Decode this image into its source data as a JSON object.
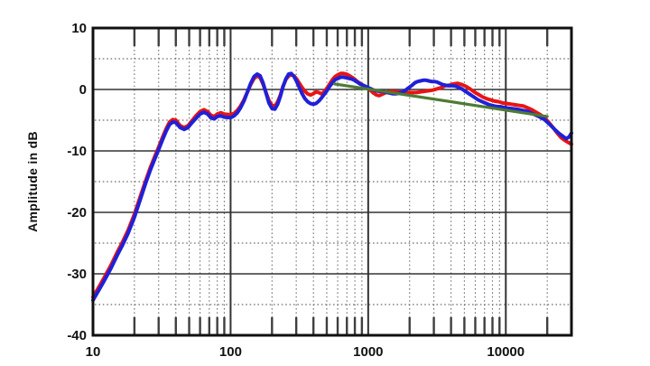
{
  "chart_data": {
    "type": "line",
    "title": "",
    "xlabel": "",
    "ylabel": "Amplitude in dB",
    "x_scale": "log",
    "xlim": [
      10,
      30000
    ],
    "ylim": [
      -40,
      10
    ],
    "grid": {
      "major": "solid",
      "minor": "dotted"
    },
    "legend": "none",
    "x_ticks": {
      "major_values": [
        10,
        100,
        1000,
        10000
      ],
      "major_labels": [
        "10",
        "100",
        "1000",
        "10000"
      ],
      "minor_decades": [
        10,
        100,
        1000,
        10000
      ]
    },
    "y_ticks": {
      "major_values": [
        10,
        0,
        -10,
        -20,
        -30,
        -40
      ],
      "major_labels": [
        "10",
        "0",
        "-10",
        "-20",
        "-30",
        "-40"
      ],
      "minor_dotted_values": [
        5,
        -5,
        -15,
        -25,
        -35
      ]
    },
    "series": [
      {
        "name": "frequency-response-red",
        "color": "#e81414",
        "points": [
          [
            10,
            -33.8
          ],
          [
            11,
            -32.2
          ],
          [
            12,
            -30.7
          ],
          [
            13.5,
            -28.6
          ],
          [
            15,
            -26.5
          ],
          [
            16.5,
            -24.7
          ],
          [
            18,
            -22.9
          ],
          [
            20,
            -20.3
          ],
          [
            22,
            -17.5
          ],
          [
            24,
            -15
          ],
          [
            26,
            -12.8
          ],
          [
            28,
            -11
          ],
          [
            30,
            -9.4
          ],
          [
            32,
            -7.8
          ],
          [
            34,
            -6.4
          ],
          [
            36,
            -5.3
          ],
          [
            38,
            -4.9
          ],
          [
            40,
            -5
          ],
          [
            43,
            -5.9
          ],
          [
            46,
            -6.2
          ],
          [
            49,
            -5.9
          ],
          [
            52,
            -5.2
          ],
          [
            56,
            -4.3
          ],
          [
            60,
            -3.6
          ],
          [
            64,
            -3.3
          ],
          [
            68,
            -3.6
          ],
          [
            72,
            -4.2
          ],
          [
            76,
            -4.4
          ],
          [
            80,
            -4
          ],
          [
            85,
            -3.8
          ],
          [
            90,
            -4
          ],
          [
            100,
            -4.1
          ],
          [
            106,
            -3.9
          ],
          [
            112,
            -3.4
          ],
          [
            118,
            -2.7
          ],
          [
            125,
            -1.7
          ],
          [
            132,
            -0.5
          ],
          [
            140,
            0.8
          ],
          [
            148,
            1.8
          ],
          [
            156,
            2.2
          ],
          [
            164,
            1.9
          ],
          [
            172,
            0.9
          ],
          [
            181,
            -0.5
          ],
          [
            190,
            -1.8
          ],
          [
            200,
            -2.6
          ],
          [
            210,
            -2.7
          ],
          [
            220,
            -2
          ],
          [
            230,
            -0.9
          ],
          [
            240,
            0.5
          ],
          [
            252,
            1.6
          ],
          [
            264,
            2.2
          ],
          [
            276,
            2.4
          ],
          [
            289,
            2.2
          ],
          [
            302,
            1.7
          ],
          [
            316,
            1
          ],
          [
            331,
            0.3
          ],
          [
            347,
            -0.3
          ],
          [
            363,
            -0.7
          ],
          [
            380,
            -0.9
          ],
          [
            398,
            -0.7
          ],
          [
            417,
            -0.4
          ],
          [
            437,
            -0.5
          ],
          [
            457,
            -0.7
          ],
          [
            479,
            -0.4
          ],
          [
            501,
            0.2
          ],
          [
            525,
            0.9
          ],
          [
            550,
            1.6
          ],
          [
            576,
            2.1
          ],
          [
            603,
            2.4
          ],
          [
            631,
            2.6
          ],
          [
            661,
            2.6
          ],
          [
            692,
            2.5
          ],
          [
            725,
            2.3
          ],
          [
            759,
            2
          ],
          [
            794,
            1.7
          ],
          [
            832,
            1.3
          ],
          [
            871,
            1
          ],
          [
            912,
            0.7
          ],
          [
            955,
            0.4
          ],
          [
            1000,
            0.2
          ],
          [
            1047,
            -0.2
          ],
          [
            1096,
            -0.6
          ],
          [
            1148,
            -0.9
          ],
          [
            1202,
            -1
          ],
          [
            1259,
            -0.8
          ],
          [
            1318,
            -0.6
          ],
          [
            1380,
            -0.4
          ],
          [
            1445,
            -0.3
          ],
          [
            1514,
            -0.3
          ],
          [
            1585,
            -0.4
          ],
          [
            1698,
            -0.4
          ],
          [
            1820,
            -0.5
          ],
          [
            1950,
            -0.5
          ],
          [
            2089,
            -0.5
          ],
          [
            2239,
            -0.5
          ],
          [
            2399,
            -0.4
          ],
          [
            2570,
            -0.3
          ],
          [
            2754,
            -0.2
          ],
          [
            2951,
            -0.1
          ],
          [
            3162,
            0.1
          ],
          [
            3388,
            0.3
          ],
          [
            3631,
            0.6
          ],
          [
            3890,
            0.7
          ],
          [
            4169,
            0.9
          ],
          [
            4467,
            1
          ],
          [
            4786,
            0.8
          ],
          [
            5129,
            0.5
          ],
          [
            5495,
            0.1
          ],
          [
            5888,
            -0.4
          ],
          [
            6310,
            -0.8
          ],
          [
            6761,
            -1.2
          ],
          [
            7244,
            -1.5
          ],
          [
            7762,
            -1.7
          ],
          [
            8318,
            -1.9
          ],
          [
            8913,
            -2
          ],
          [
            9550,
            -2.2
          ],
          [
            10233,
            -2.3
          ],
          [
            10965,
            -2.4
          ],
          [
            11749,
            -2.5
          ],
          [
            12589,
            -2.6
          ],
          [
            13490,
            -2.7
          ],
          [
            14454,
            -3
          ],
          [
            15488,
            -3.3
          ],
          [
            16596,
            -3.7
          ],
          [
            17783,
            -4.1
          ],
          [
            19055,
            -4.6
          ],
          [
            20417,
            -5.3
          ],
          [
            21878,
            -6.1
          ],
          [
            23442,
            -7
          ],
          [
            25119,
            -7.8
          ],
          [
            26915,
            -8.3
          ],
          [
            28840,
            -8.7
          ],
          [
            30000,
            -8.9
          ]
        ]
      },
      {
        "name": "frequency-response-blue",
        "color": "#2020d8",
        "points": [
          [
            10,
            -34.3
          ],
          [
            11,
            -32.7
          ],
          [
            12,
            -31.2
          ],
          [
            13.5,
            -29.1
          ],
          [
            15,
            -27
          ],
          [
            16.5,
            -25.2
          ],
          [
            18,
            -23.4
          ],
          [
            20,
            -20.8
          ],
          [
            22,
            -18
          ],
          [
            24,
            -15.4
          ],
          [
            26,
            -13.2
          ],
          [
            28,
            -11.4
          ],
          [
            30,
            -9.8
          ],
          [
            32,
            -8.2
          ],
          [
            34,
            -6.8
          ],
          [
            36,
            -5.7
          ],
          [
            38,
            -5.3
          ],
          [
            40,
            -5.4
          ],
          [
            43,
            -6.2
          ],
          [
            46,
            -6.5
          ],
          [
            49,
            -6.2
          ],
          [
            52,
            -5.5
          ],
          [
            56,
            -4.7
          ],
          [
            60,
            -4
          ],
          [
            64,
            -3.7
          ],
          [
            68,
            -4
          ],
          [
            72,
            -4.6
          ],
          [
            76,
            -4.8
          ],
          [
            80,
            -4.4
          ],
          [
            85,
            -4.3
          ],
          [
            90,
            -4.5
          ],
          [
            100,
            -4.6
          ],
          [
            106,
            -4.3
          ],
          [
            112,
            -3.8
          ],
          [
            118,
            -3
          ],
          [
            125,
            -1.9
          ],
          [
            132,
            -0.5
          ],
          [
            140,
            1
          ],
          [
            148,
            2.1
          ],
          [
            156,
            2.5
          ],
          [
            164,
            2.2
          ],
          [
            172,
            1.1
          ],
          [
            181,
            -0.6
          ],
          [
            190,
            -2.2
          ],
          [
            200,
            -3.1
          ],
          [
            210,
            -3.2
          ],
          [
            220,
            -2.4
          ],
          [
            230,
            -1.1
          ],
          [
            240,
            0.4
          ],
          [
            252,
            1.7
          ],
          [
            264,
            2.5
          ],
          [
            276,
            2.6
          ],
          [
            289,
            2.1
          ],
          [
            302,
            1.3
          ],
          [
            316,
            0.3
          ],
          [
            331,
            -0.7
          ],
          [
            347,
            -1.5
          ],
          [
            363,
            -2
          ],
          [
            380,
            -2.3
          ],
          [
            398,
            -2.4
          ],
          [
            417,
            -2.3
          ],
          [
            437,
            -1.9
          ],
          [
            457,
            -1.4
          ],
          [
            479,
            -0.8
          ],
          [
            501,
            -0.2
          ],
          [
            525,
            0.5
          ],
          [
            550,
            1.1
          ],
          [
            576,
            1.6
          ],
          [
            603,
            1.8
          ],
          [
            631,
            2
          ],
          [
            661,
            2
          ],
          [
            692,
            1.9
          ],
          [
            725,
            1.8
          ],
          [
            759,
            1.7
          ],
          [
            794,
            1.5
          ],
          [
            832,
            1.2
          ],
          [
            871,
            0.9
          ],
          [
            912,
            0.7
          ],
          [
            955,
            0.5
          ],
          [
            1000,
            0.3
          ],
          [
            1047,
            0.1
          ],
          [
            1096,
            -0.1
          ],
          [
            1148,
            -0.2
          ],
          [
            1202,
            -0.3
          ],
          [
            1259,
            -0.3
          ],
          [
            1318,
            -0.4
          ],
          [
            1380,
            -0.5
          ],
          [
            1445,
            -0.6
          ],
          [
            1514,
            -0.7
          ],
          [
            1585,
            -0.7
          ],
          [
            1698,
            -0.6
          ],
          [
            1820,
            -0.3
          ],
          [
            1950,
            0.2
          ],
          [
            2089,
            0.7
          ],
          [
            2188,
            1.1
          ],
          [
            2291,
            1.3
          ],
          [
            2399,
            1.4
          ],
          [
            2512,
            1.5
          ],
          [
            2630,
            1.5
          ],
          [
            2754,
            1.4
          ],
          [
            2884,
            1.3
          ],
          [
            3020,
            1.3
          ],
          [
            3162,
            1.2
          ],
          [
            3311,
            1
          ],
          [
            3467,
            0.8
          ],
          [
            3631,
            0.7
          ],
          [
            3802,
            0.6
          ],
          [
            3981,
            0.6
          ],
          [
            4169,
            0.6
          ],
          [
            4365,
            0.5
          ],
          [
            4571,
            0.3
          ],
          [
            4786,
            0.1
          ],
          [
            5012,
            -0.2
          ],
          [
            5248,
            -0.5
          ],
          [
            5495,
            -0.8
          ],
          [
            5754,
            -1.1
          ],
          [
            6026,
            -1.4
          ],
          [
            6310,
            -1.7
          ],
          [
            6607,
            -1.9
          ],
          [
            6918,
            -2.1
          ],
          [
            7244,
            -2.3
          ],
          [
            7586,
            -2.5
          ],
          [
            7943,
            -2.6
          ],
          [
            8318,
            -2.7
          ],
          [
            8710,
            -2.8
          ],
          [
            9120,
            -2.8
          ],
          [
            9550,
            -2.9
          ],
          [
            10000,
            -3
          ],
          [
            10965,
            -3.1
          ],
          [
            12023,
            -3.2
          ],
          [
            13183,
            -3.4
          ],
          [
            14454,
            -3.6
          ],
          [
            15849,
            -4
          ],
          [
            17378,
            -4.4
          ],
          [
            19055,
            -4.9
          ],
          [
            20893,
            -5.7
          ],
          [
            22909,
            -6.6
          ],
          [
            24547,
            -7.2
          ],
          [
            26303,
            -7.7
          ],
          [
            27542,
            -8
          ],
          [
            28840,
            -7.7
          ],
          [
            30000,
            -7.1
          ]
        ]
      },
      {
        "name": "reference-slope-green",
        "color": "#4e7b33",
        "points": [
          [
            570,
            0.9
          ],
          [
            20000,
            -4.4
          ]
        ]
      }
    ]
  },
  "colors": {
    "background": "#ffffff",
    "frame": "#101010",
    "grid_major": "#333333",
    "grid_minor": "#707070",
    "tick_mark": "#3f3f3f",
    "text": "#111111"
  }
}
